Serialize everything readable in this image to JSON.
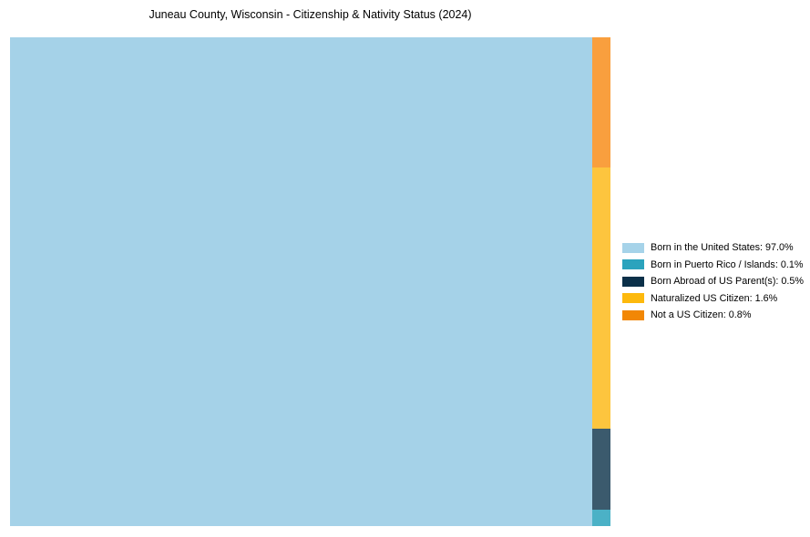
{
  "title": "Juneau County, Wisconsin - Citizenship & Nativity Status (2024)",
  "chart_data": {
    "type": "treemap",
    "title": "Juneau County, Wisconsin - Citizenship & Nativity Status (2024)",
    "unit": "%",
    "segments": [
      {
        "label": "Born in the United States",
        "value": 97.0,
        "color": "#a6d3e9",
        "fill": "#a5d2e8",
        "text": "Born in the United States: 97.0%"
      },
      {
        "label": "Born in Puerto Rico / Islands",
        "value": 0.1,
        "color": "#2ba3bd",
        "fill": "#4bb1c6",
        "text": "Born in Puerto Rico / Islands: 0.1%"
      },
      {
        "label": "Born Abroad of US Parent(s)",
        "value": 0.5,
        "color": "#0b3049",
        "fill": "#3b5a6d",
        "text": "Born Abroad of US Parent(s): 0.5%"
      },
      {
        "label": "Naturalized US Citizen",
        "value": 1.6,
        "color": "#fdb90d",
        "fill": "#fdc53e",
        "text": "Naturalized US Citizen: 1.6%"
      },
      {
        "label": "Not a US Citizen",
        "value": 0.8,
        "color": "#f28705",
        "fill": "#f99f3e",
        "text": "Not a US Citizen: 0.8%"
      }
    ],
    "layout": {
      "main_index": 0,
      "column_top_to_bottom": [
        4,
        3,
        2,
        1
      ],
      "legend_position": "right",
      "background": "#ffffff",
      "grid": false,
      "axes": false
    }
  }
}
